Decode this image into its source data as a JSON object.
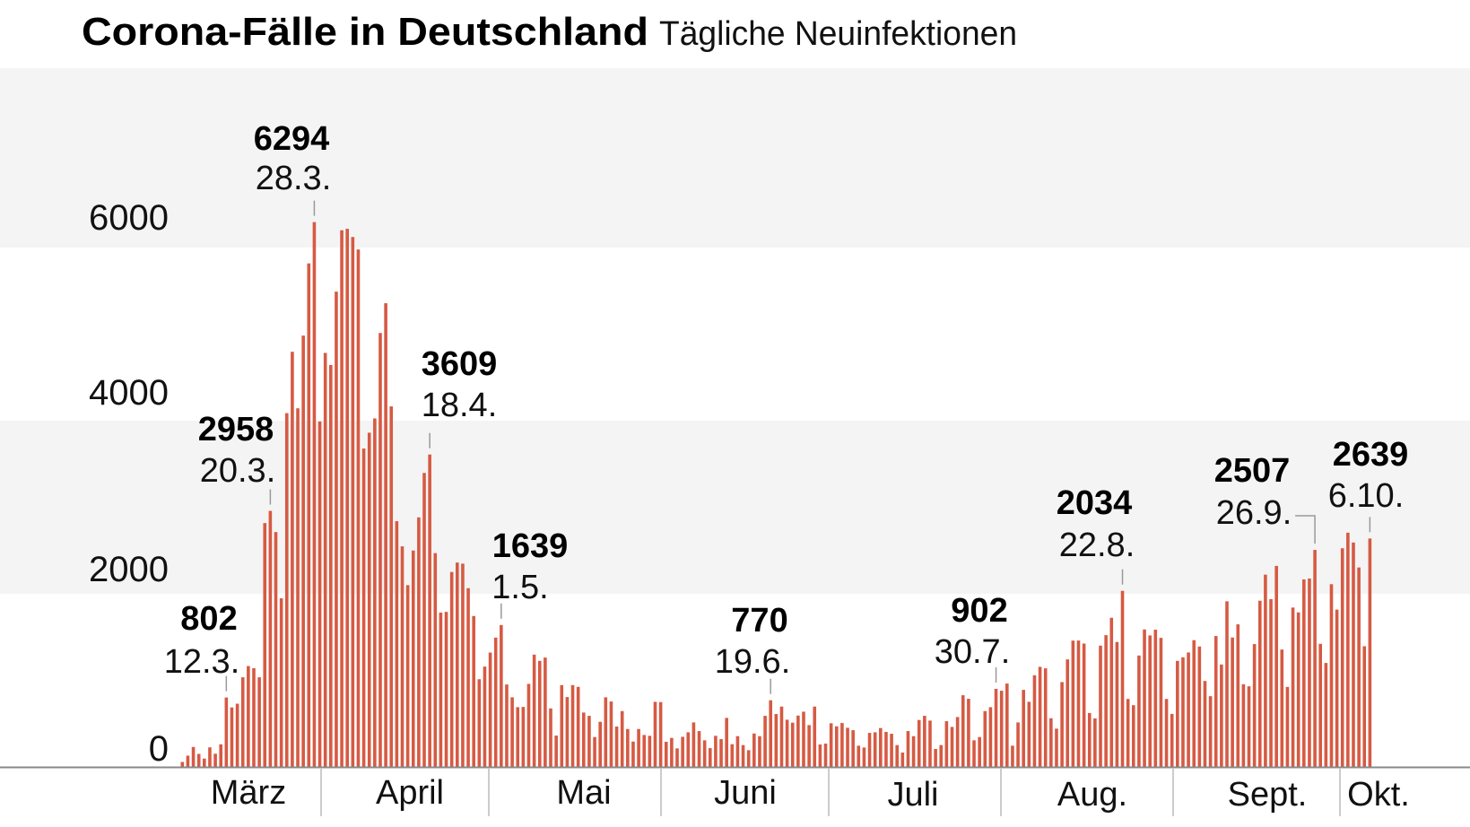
{
  "title": "Corona-Fälle in Deutschland",
  "subtitle": "Tägliche Neuinfektionen",
  "colors": {
    "bar": "#d65a43",
    "band": "#f4f4f4",
    "axis": "#888888",
    "tick": "#999999"
  },
  "chart_data": {
    "type": "bar",
    "title": "Corona-Fälle in Deutschland",
    "subtitle": "Tägliche Neuinfektionen",
    "xlabel": "",
    "ylabel": "",
    "ylim": [
      0,
      8000
    ],
    "yticks": [
      "0",
      "2000",
      "4000",
      "6000"
    ],
    "months": [
      "März",
      "April",
      "Mai",
      "Juni",
      "Juli",
      "Aug.",
      "Sept.",
      "Okt."
    ],
    "values": [
      57,
      130,
      230,
      150,
      96,
      226,
      152,
      261,
      802,
      687,
      730,
      1035,
      1165,
      1140,
      1035,
      2817,
      2958,
      2713,
      1948,
      4087,
      4796,
      4143,
      4983,
      5817,
      6294,
      3991,
      4783,
      4643,
      5491,
      6200,
      6217,
      6122,
      5978,
      3678,
      3861,
      4026,
      5013,
      5357,
      4165,
      2839,
      2548,
      2100,
      2500,
      2883,
      3396,
      3609,
      2470,
      1783,
      1791,
      2252,
      2361,
      2348,
      2065,
      1743,
      1013,
      1159,
      1321,
      1494,
      1639,
      952,
      804,
      690,
      693,
      959,
      1297,
      1225,
      1263,
      676,
      362,
      945,
      807,
      945,
      925,
      628,
      590,
      345,
      521,
      804,
      756,
      466,
      645,
      438,
      293,
      438,
      369,
      359,
      752,
      749,
      290,
      335,
      214,
      348,
      400,
      514,
      414,
      307,
      217,
      359,
      321,
      566,
      262,
      355,
      252,
      193,
      386,
      355,
      590,
      770,
      611,
      697,
      545,
      511,
      593,
      638,
      483,
      697,
      259,
      269,
      504,
      469,
      507,
      452,
      424,
      245,
      224,
      393,
      400,
      449,
      404,
      383,
      252,
      166,
      414,
      355,
      542,
      590,
      535,
      207,
      252,
      528,
      462,
      576,
      828,
      787,
      307,
      345,
      645,
      690,
      902,
      880,
      963,
      245,
      514,
      890,
      752,
      1059,
      1156,
      1139,
      562,
      442,
      980,
      1242,
      1459,
      1460,
      1425,
      623,
      560,
      1401,
      1522,
      1723,
      1443,
      2034,
      785,
      713,
      1287,
      1588,
      1519,
      1585,
      1491,
      785,
      612,
      1225,
      1266,
      1322,
      1464,
      1391,
      993,
      817,
      1512,
      1183,
      1913,
      1495,
      1647,
      955,
      931,
      1419,
      1920,
      2221,
      1938,
      2322,
      1356,
      924,
      1841,
      1785,
      2166,
      2176,
      2507,
      1422,
      1201,
      2111,
      1817,
      2526,
      2706,
      2592,
      2304,
      1394,
      2639
    ],
    "annotations": [
      {
        "value": "802",
        "date": "12.3.",
        "bar": 9
      },
      {
        "value": "2958",
        "date": "20.3.",
        "bar": 17
      },
      {
        "value": "6294",
        "date": "28.3.",
        "bar": 25
      },
      {
        "value": "3609",
        "date": "18.4.",
        "bar": 46
      },
      {
        "value": "1639",
        "date": "1.5.",
        "bar": 59
      },
      {
        "value": "770",
        "date": "19.6.",
        "bar": 108
      },
      {
        "value": "902",
        "date": "30.7.",
        "bar": 149
      },
      {
        "value": "2034",
        "date": "22.8.",
        "bar": 172
      },
      {
        "value": "2507",
        "date": "26.9.",
        "bar": 207
      },
      {
        "value": "2639",
        "date": "6.10.",
        "bar": 217
      }
    ],
    "grid": "alternating horizontal bands",
    "legend": "none"
  }
}
